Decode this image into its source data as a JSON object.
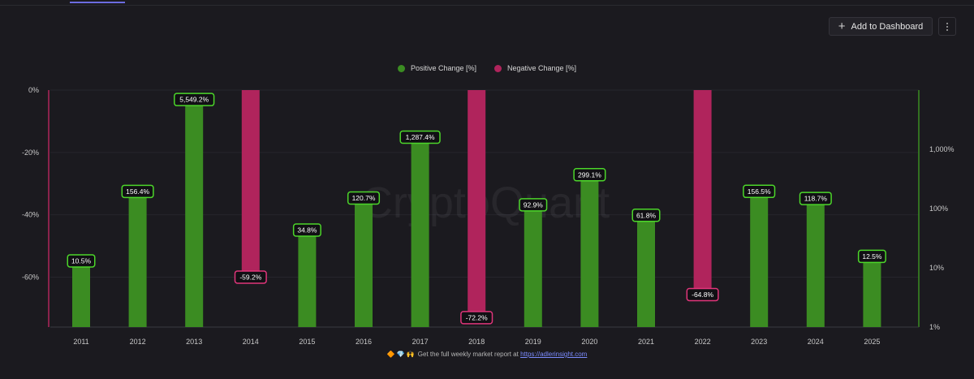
{
  "toolbar": {
    "add_dashboard_label": "Add to Dashboard",
    "plus_icon": "plus-icon",
    "more_icon": "kebab-menu-icon"
  },
  "watermark": "CryptoQuant",
  "footer": {
    "icons": "🔶💎🙌",
    "text": "Get the full weekly market report at",
    "link": "https://adlerinsight.com"
  },
  "colors": {
    "background": "#1b1a1f",
    "positive": "#3b8c22",
    "negative": "#b0245c",
    "positive_label_border": "#4cd62a",
    "negative_label_border": "#e0357a"
  },
  "chart_data": {
    "type": "bar",
    "categories": [
      "2011",
      "2012",
      "2013",
      "2014",
      "2015",
      "2016",
      "2017",
      "2018",
      "2019",
      "2020",
      "2021",
      "2022",
      "2023",
      "2024",
      "2025"
    ],
    "series": [
      {
        "name": "Positive Change [%]",
        "axis": "right",
        "scale": "log",
        "values": [
          10.5,
          156.4,
          5549.2,
          null,
          34.8,
          120.7,
          1287.4,
          null,
          92.9,
          299.1,
          61.8,
          null,
          156.5,
          118.7,
          12.5
        ],
        "labels": [
          "10.5%",
          "156.4%",
          "5,549.2%",
          "",
          "34.8%",
          "120.7%",
          "1,287.4%",
          "",
          "92.9%",
          "299.1%",
          "61.8%",
          "",
          "156.5%",
          "118.7%",
          "12.5%"
        ]
      },
      {
        "name": "Negative Change [%]",
        "axis": "left",
        "scale": "linear",
        "values": [
          null,
          null,
          null,
          -59.2,
          null,
          null,
          null,
          -72.2,
          null,
          null,
          null,
          -64.8,
          null,
          null,
          null
        ],
        "labels": [
          "",
          "",
          "",
          "-59.2%",
          "",
          "",
          "",
          "-72.2%",
          "",
          "",
          "",
          "-64.8%",
          "",
          "",
          ""
        ]
      }
    ],
    "left_axis": {
      "ticks": [
        "0%",
        "-20%",
        "-40%",
        "-60%"
      ],
      "tick_values": [
        0,
        -20,
        -40,
        -60
      ],
      "range": [
        0,
        -76
      ]
    },
    "right_axis": {
      "ticks": [
        "1,000%",
        "100%",
        "10%",
        "1%"
      ],
      "tick_values": [
        1000,
        100,
        10,
        1
      ],
      "range": [
        1,
        10000
      ]
    },
    "legend_placement": "top-center",
    "grid": true
  }
}
